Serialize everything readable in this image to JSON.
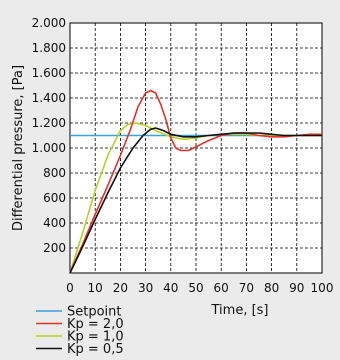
{
  "chart_data": {
    "type": "line",
    "title": "",
    "xlabel": "Time, [s]",
    "ylabel": "Differential pressure, [Pa]",
    "xlim": [
      0,
      100
    ],
    "ylim": [
      0,
      2000
    ],
    "x_ticks": [
      "0",
      "10",
      "20",
      "30",
      "40",
      "50",
      "60",
      "70",
      "80",
      "90",
      "100"
    ],
    "y_ticks": [
      "200",
      "400",
      "600",
      "800",
      "1.000",
      "1.200",
      "1.400",
      "1.600",
      "1.800",
      "2.000"
    ],
    "grid": true,
    "legend_position": "bottom-left",
    "series": [
      {
        "name": "Setpoint",
        "color": "#3aa0d8",
        "points": [
          [
            0,
            1100
          ],
          [
            100,
            1100
          ]
        ]
      },
      {
        "name": "Kp = 2,0",
        "color": "#e8302a",
        "points": [
          [
            0,
            0
          ],
          [
            5,
            230
          ],
          [
            10,
            470
          ],
          [
            15,
            700
          ],
          [
            20,
            940
          ],
          [
            24,
            1150
          ],
          [
            27,
            1330
          ],
          [
            30,
            1440
          ],
          [
            32,
            1460
          ],
          [
            34,
            1440
          ],
          [
            36,
            1350
          ],
          [
            38,
            1230
          ],
          [
            40,
            1080
          ],
          [
            42,
            1000
          ],
          [
            44,
            980
          ],
          [
            47,
            980
          ],
          [
            50,
            1010
          ],
          [
            55,
            1060
          ],
          [
            60,
            1100
          ],
          [
            65,
            1120
          ],
          [
            70,
            1120
          ],
          [
            75,
            1100
          ],
          [
            80,
            1090
          ],
          [
            85,
            1090
          ],
          [
            90,
            1100
          ],
          [
            95,
            1110
          ],
          [
            100,
            1110
          ]
        ]
      },
      {
        "name": "Kp = 1,0",
        "color": "#b7cf2a",
        "points": [
          [
            0,
            0
          ],
          [
            5,
            320
          ],
          [
            10,
            660
          ],
          [
            15,
            940
          ],
          [
            20,
            1140
          ],
          [
            23,
            1190
          ],
          [
            26,
            1200
          ],
          [
            30,
            1180
          ],
          [
            35,
            1130
          ],
          [
            40,
            1090
          ],
          [
            45,
            1070
          ],
          [
            50,
            1080
          ],
          [
            55,
            1100
          ],
          [
            60,
            1110
          ],
          [
            65,
            1110
          ],
          [
            70,
            1110
          ],
          [
            75,
            1100
          ],
          [
            80,
            1100
          ],
          [
            85,
            1100
          ],
          [
            90,
            1100
          ],
          [
            95,
            1100
          ],
          [
            100,
            1100
          ]
        ]
      },
      {
        "name": "Kp = 0,5",
        "color": "#111111",
        "points": [
          [
            0,
            0
          ],
          [
            5,
            210
          ],
          [
            10,
            430
          ],
          [
            15,
            640
          ],
          [
            20,
            840
          ],
          [
            25,
            1000
          ],
          [
            29,
            1100
          ],
          [
            32,
            1150
          ],
          [
            34,
            1160
          ],
          [
            37,
            1140
          ],
          [
            40,
            1110
          ],
          [
            45,
            1090
          ],
          [
            50,
            1090
          ],
          [
            55,
            1100
          ],
          [
            60,
            1110
          ],
          [
            65,
            1120
          ],
          [
            70,
            1120
          ],
          [
            75,
            1120
          ],
          [
            80,
            1110
          ],
          [
            85,
            1100
          ],
          [
            90,
            1100
          ],
          [
            95,
            1100
          ],
          [
            100,
            1100
          ]
        ]
      }
    ]
  }
}
